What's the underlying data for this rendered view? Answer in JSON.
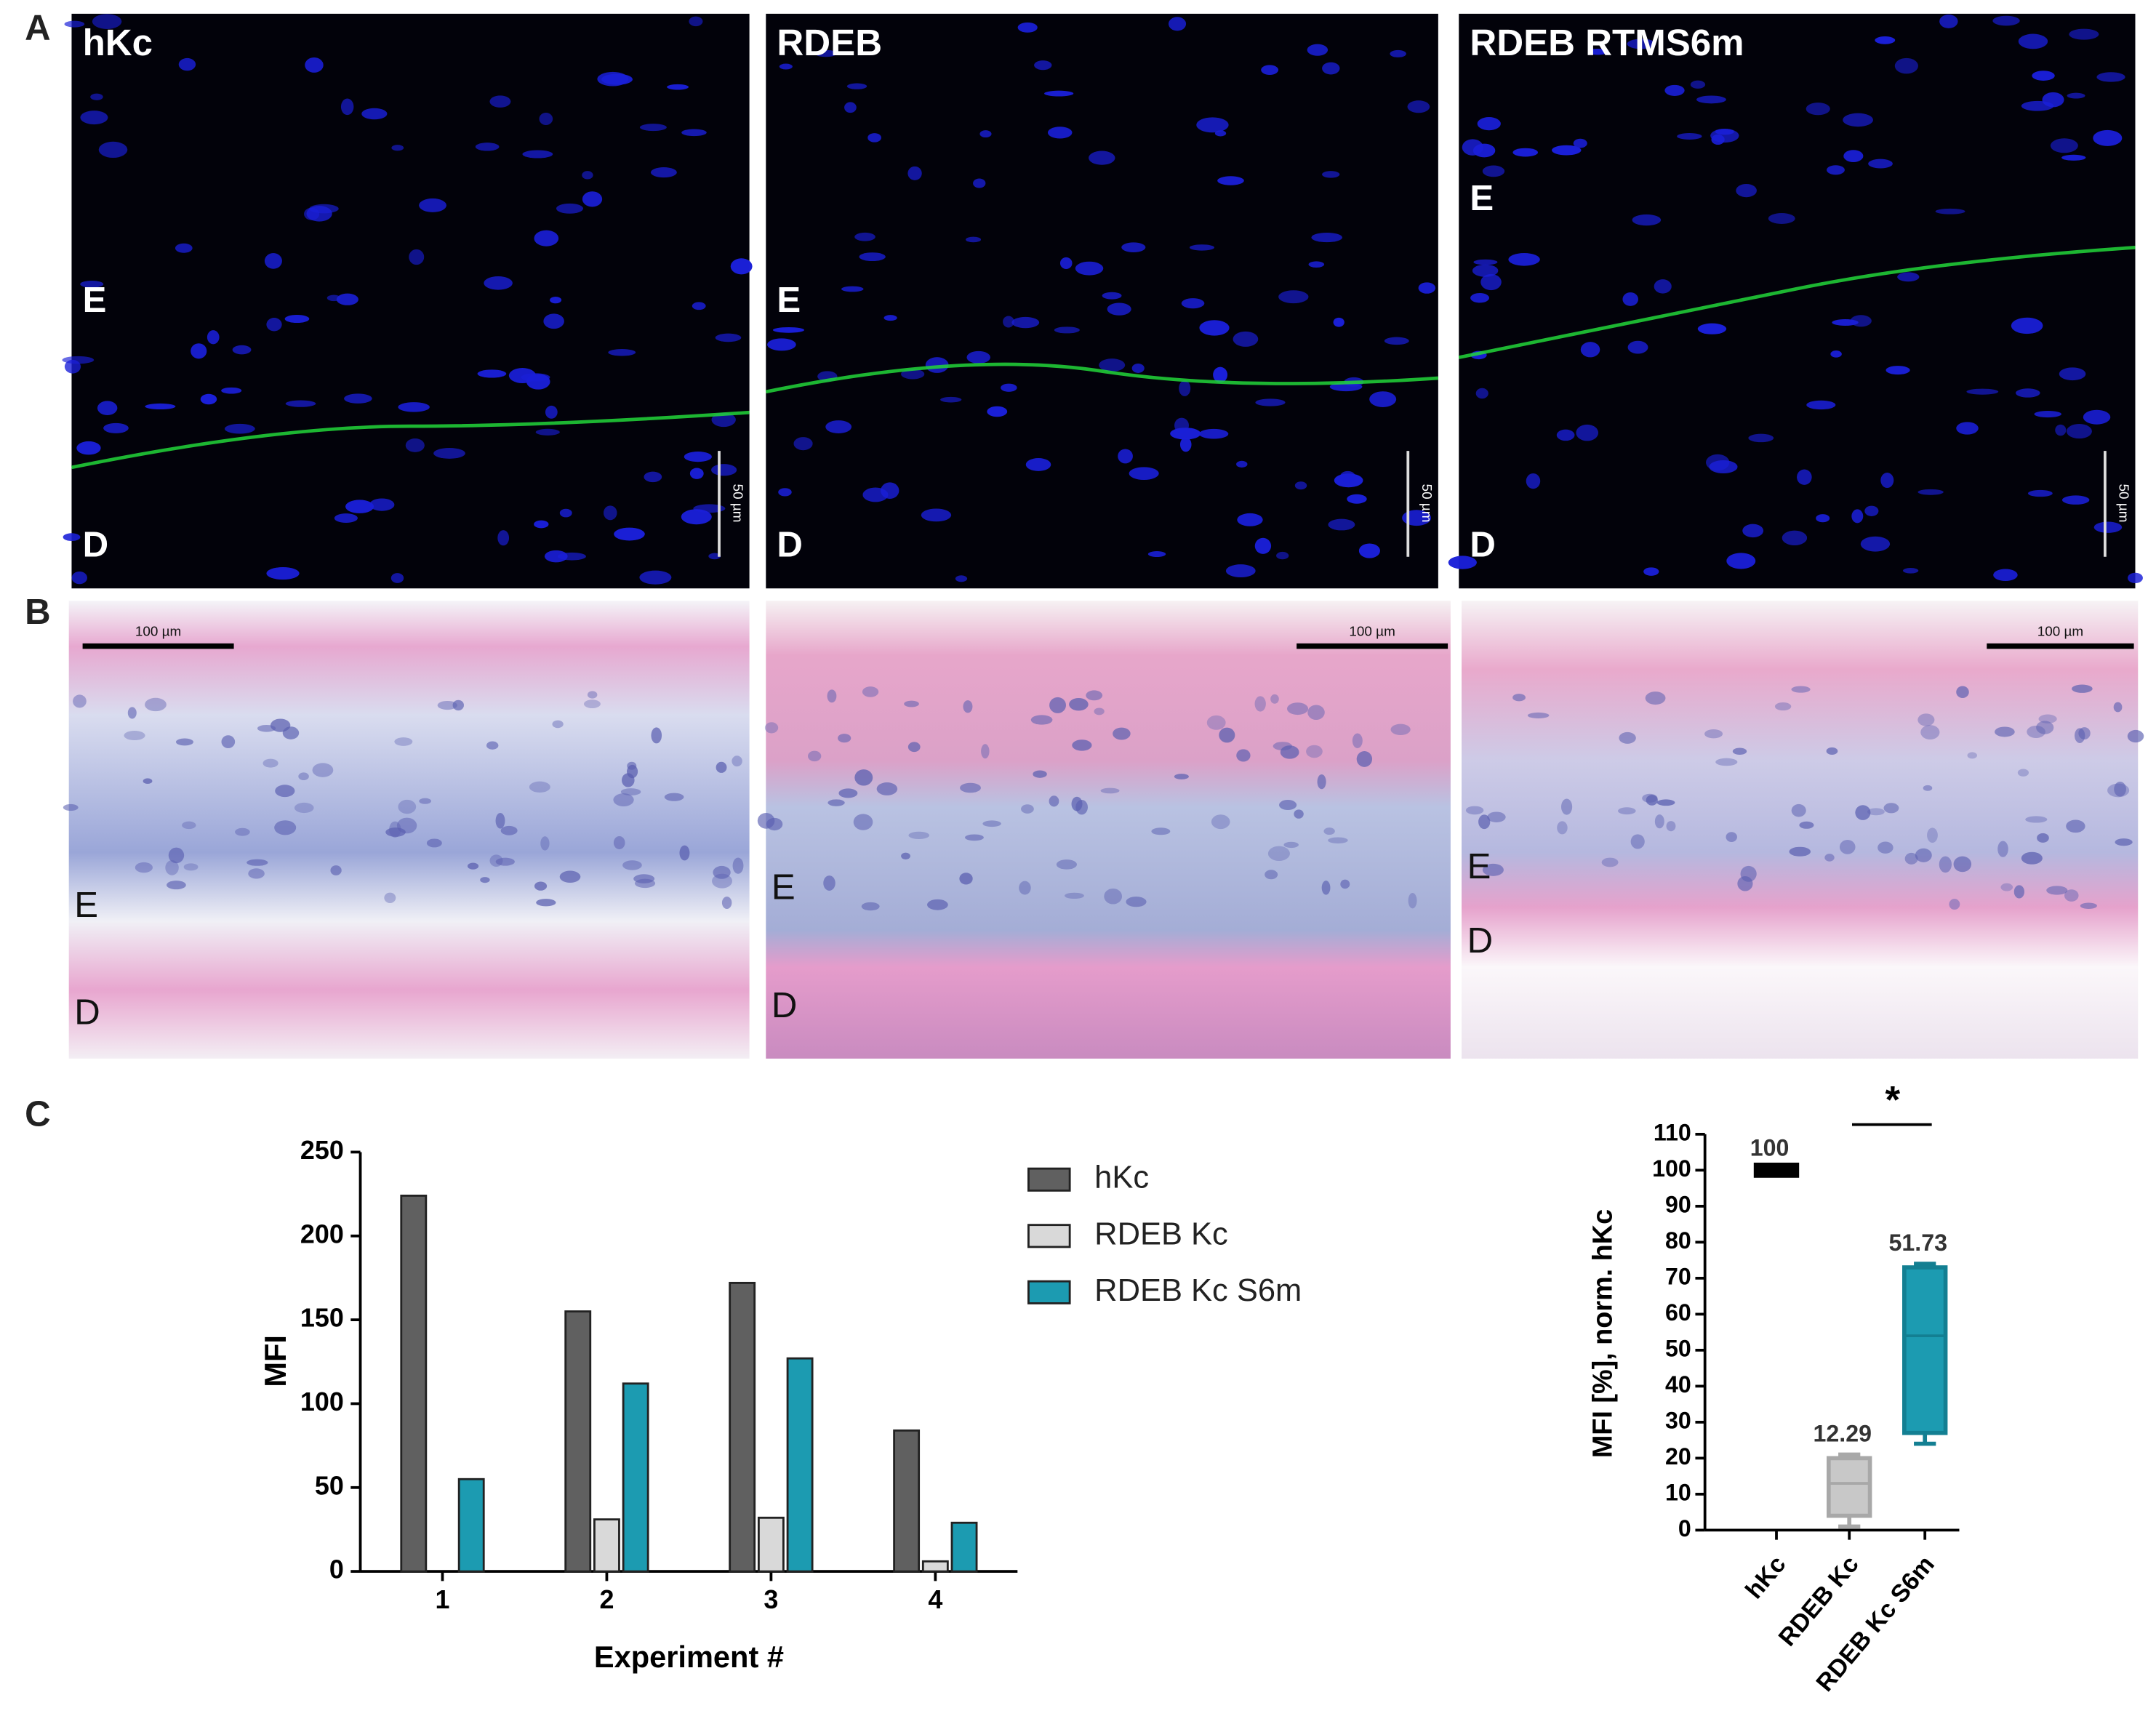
{
  "figure": {
    "panel_labels": [
      "A",
      "B",
      "C"
    ],
    "fluorescence": [
      {
        "title": "hKc",
        "epidermis": "E",
        "dermis": "D",
        "scale": "50 µm"
      },
      {
        "title": "RDEB",
        "epidermis": "E",
        "dermis": "D",
        "scale": "50 µm"
      },
      {
        "title": "RDEB RTMS6m",
        "epidermis": "E",
        "dermis": "D",
        "scale": "50 µm"
      }
    ],
    "histology": [
      {
        "epidermis": "E",
        "dermis": "D",
        "scale": "100 µm"
      },
      {
        "epidermis": "E",
        "dermis": "D",
        "scale": "100 µm"
      },
      {
        "epidermis": "E",
        "dermis": "D",
        "scale": "100 µm"
      }
    ]
  },
  "chart_data": [
    {
      "type": "bar",
      "x_label": "Experiment #",
      "y_label": "MFI",
      "categories": [
        "1",
        "2",
        "3",
        "4"
      ],
      "series": [
        {
          "name": "hKc",
          "color": "#606060",
          "values": [
            224,
            155,
            172,
            84
          ]
        },
        {
          "name": "RDEB Kc",
          "color": "#d9d9d9",
          "values": [
            null,
            31,
            32,
            6
          ]
        },
        {
          "name": "RDEB Kc S6m",
          "color": "#1c9bb1",
          "values": [
            55,
            112,
            127,
            29
          ]
        }
      ],
      "ylim": [
        0,
        250
      ],
      "yticks": [
        0,
        50,
        100,
        150,
        200,
        250
      ],
      "legend": "right"
    },
    {
      "type": "box",
      "y_label": "MFI [%], norm. hKc",
      "categories": [
        "hKc",
        "RDEB Kc",
        "RDEB Kc S6m"
      ],
      "colors": [
        "#000000",
        "#c8c8c8",
        "#1c9bb1"
      ],
      "boxes": [
        {
          "min": 100,
          "q1": 100,
          "median": 100,
          "q3": 100,
          "max": 100
        },
        {
          "min": 1,
          "q1": 4,
          "median": 13,
          "q3": 20,
          "max": 21
        },
        {
          "min": 24,
          "q1": 27,
          "median": 54,
          "q3": 73,
          "max": 74
        }
      ],
      "means": [
        100,
        12.29,
        51.73
      ],
      "significance": "*",
      "ylim": [
        0,
        110
      ],
      "yticks": [
        0,
        10,
        20,
        30,
        40,
        50,
        60,
        70,
        80,
        90,
        100,
        110
      ]
    }
  ]
}
